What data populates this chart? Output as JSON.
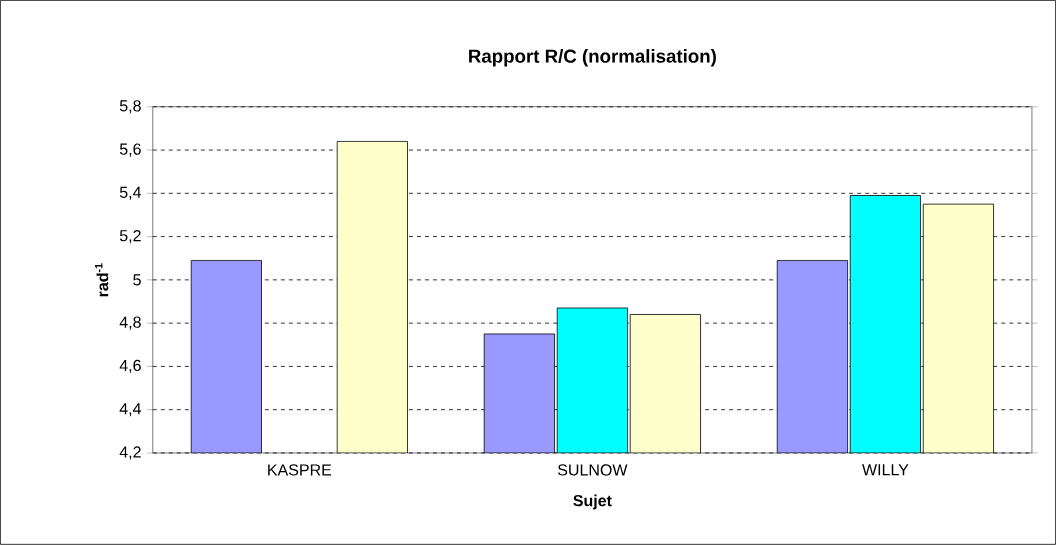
{
  "chart_data": {
    "type": "bar",
    "title": "**Rapport R/C (normalisation)**",
    "xlabel": "**Sujet**",
    "ylabel": "**rad$^{-1}$**",
    "categories": [
      "KASPRE",
      "SULNOW",
      "WILLY"
    ],
    "series": [
      {
        "color": "#9999ff",
        "values": [
          5.09,
          4.75,
          5.09
        ]
      },
      {
        "color": "#00ffff",
        "values": [
          null,
          4.87,
          5.39
        ]
      },
      {
        "color": "#ffffcc",
        "values": [
          5.64,
          4.84,
          5.35
        ]
      }
    ],
    "ylim": [
      4.2,
      5.8
    ],
    "yticks": [
      {
        "value": 4.2,
        "label": "4,2"
      },
      {
        "value": 4.4,
        "label": "4,4"
      },
      {
        "value": 4.6,
        "label": "4,6"
      },
      {
        "value": 4.8,
        "label": "4,8"
      },
      {
        "value": 5,
        "label": "5"
      },
      {
        "value": 5.2,
        "label": "5,2"
      },
      {
        "value": 5.4,
        "label": "5,4"
      },
      {
        "value": 5.6,
        "label": "5,6"
      },
      {
        "value": 5.8,
        "label": "5,8"
      }
    ],
    "grid": "y"
  }
}
